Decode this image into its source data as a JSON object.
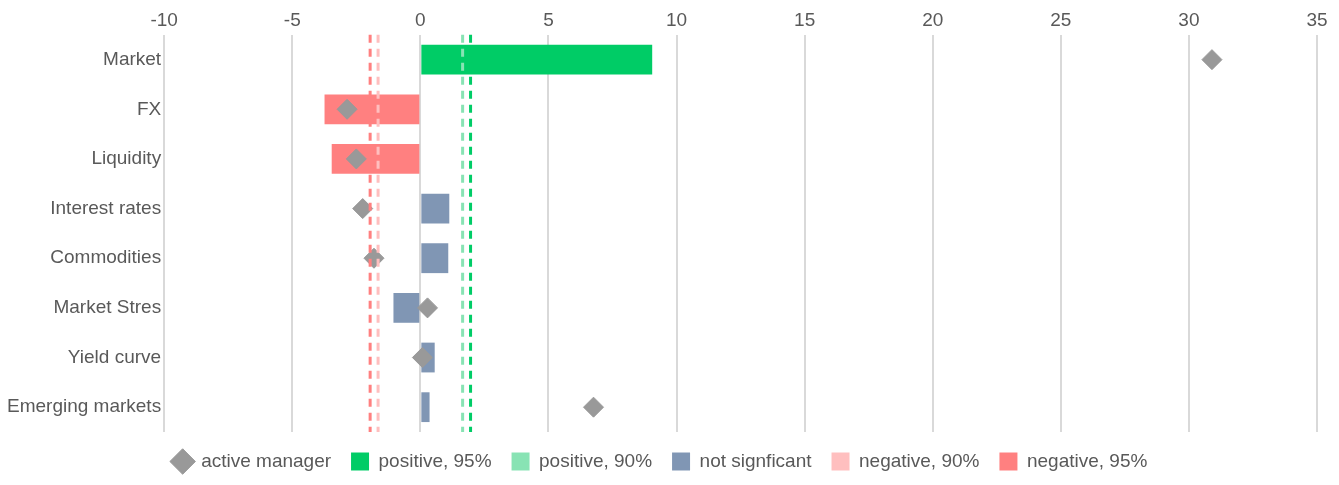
{
  "chart_data": {
    "type": "bar",
    "orientation": "horizontal",
    "stacked": true,
    "categories": [
      "Market",
      "FX",
      "Liquidity",
      "Interest rates",
      "Commodities",
      "Market Stres",
      "Yield curve",
      "Emerging markets"
    ],
    "series": [
      {
        "name": "positive, 95%",
        "color": "#00cc66",
        "values": [
          9.05,
          null,
          null,
          null,
          null,
          null,
          null,
          null
        ]
      },
      {
        "name": "positive, 90%",
        "color": "#88e3b4",
        "values": [
          null,
          null,
          null,
          null,
          null,
          null,
          null,
          null
        ]
      },
      {
        "name": "not signficant",
        "color": "#8096b4",
        "values": [
          null,
          null,
          null,
          1.13,
          1.09,
          -1.05,
          0.56,
          0.36
        ]
      },
      {
        "name": "negative, 90%",
        "color": "#ffbfbf",
        "values": [
          null,
          null,
          null,
          null,
          null,
          null,
          null,
          null
        ]
      },
      {
        "name": "negative, 95%",
        "color": "#ff8080",
        "values": [
          null,
          -3.74,
          -3.46,
          null,
          null,
          null,
          null,
          null
        ]
      },
      {
        "name": "active manager",
        "type": "scatter",
        "marker": "diamond",
        "color": "#999999",
        "values": [
          30.9,
          -2.86,
          -2.5,
          -2.25,
          -1.81,
          0.28,
          0.08,
          6.76
        ]
      }
    ],
    "xlim": [
      -10,
      35
    ],
    "xticks": [
      -10,
      -5,
      0,
      5,
      10,
      15,
      20,
      25,
      30,
      35
    ],
    "ref_lines": [
      {
        "axis": "x",
        "value": -1.96,
        "color": "#ff8080",
        "line_style": "dashed"
      },
      {
        "axis": "x",
        "value": -1.65,
        "color": "#ffbfbf",
        "line_style": "dashed"
      },
      {
        "axis": "x",
        "value": 1.65,
        "color": "#88e3b4",
        "line_style": "dashed"
      },
      {
        "axis": "x",
        "value": 1.96,
        "color": "#00cc66",
        "line_style": "dashed"
      }
    ],
    "grid": "x",
    "legend": "bottom"
  }
}
